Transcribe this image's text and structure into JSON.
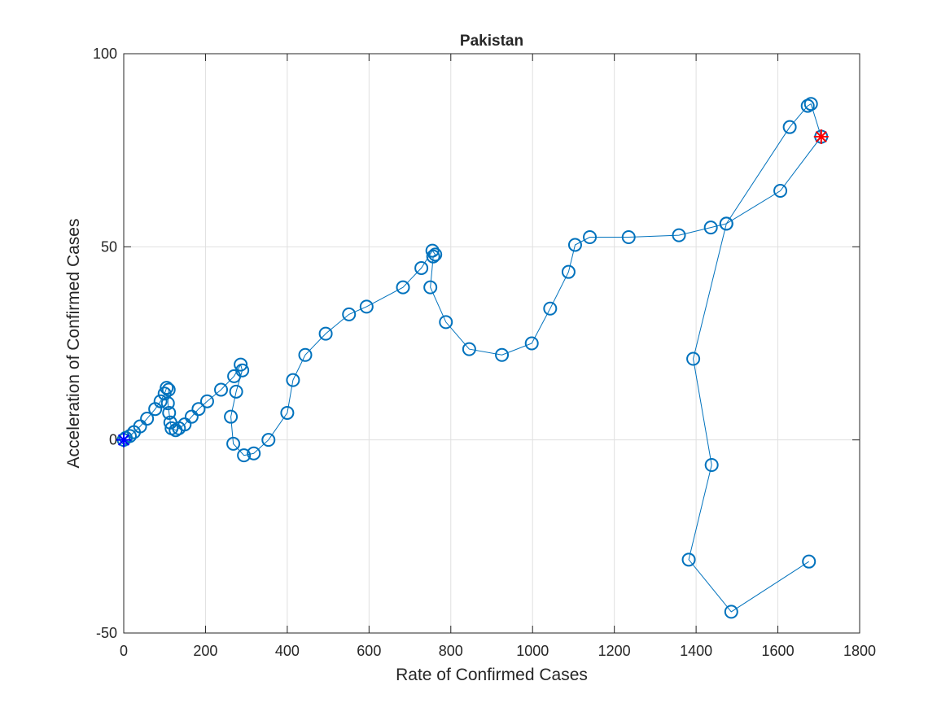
{
  "chart_data": {
    "type": "scatter",
    "title": "Pakistan",
    "xlabel": "Rate of Confirmed Cases",
    "ylabel": "Acceleration of Confirmed Cases",
    "xlim": [
      0,
      1800
    ],
    "ylim": [
      -50,
      100
    ],
    "xticks": [
      0,
      200,
      400,
      600,
      800,
      1000,
      1200,
      1400,
      1600,
      1800
    ],
    "yticks": [
      -50,
      0,
      50,
      100
    ],
    "xtick_labels": [
      "0",
      "200",
      "400",
      "600",
      "800",
      "1000",
      "1200",
      "1400",
      "1600",
      "1800"
    ],
    "ytick_labels": [
      "-50",
      "0",
      "50",
      "100"
    ],
    "grid": true,
    "series": [
      {
        "color": "#0072BD",
        "marker": "circle",
        "line": true,
        "points": [
          [
            0,
            0
          ],
          [
            5,
            0.5
          ],
          [
            15,
            1
          ],
          [
            25,
            2
          ],
          [
            40,
            3.5
          ],
          [
            57,
            5.5
          ],
          [
            77,
            8
          ],
          [
            90,
            10
          ],
          [
            100,
            12
          ],
          [
            105,
            13.5
          ],
          [
            110,
            13
          ],
          [
            108,
            9.5
          ],
          [
            111,
            7
          ],
          [
            114,
            4.5
          ],
          [
            117,
            3
          ],
          [
            127,
            2.5
          ],
          [
            135,
            3
          ],
          [
            149,
            4
          ],
          [
            166,
            6
          ],
          [
            183,
            8
          ],
          [
            204,
            10
          ],
          [
            238,
            13
          ],
          [
            270,
            16.5
          ],
          [
            286,
            19.5
          ],
          [
            290,
            18
          ],
          [
            275,
            12.5
          ],
          [
            262,
            6
          ],
          [
            268,
            -1
          ],
          [
            294,
            -4
          ],
          [
            318,
            -3.5
          ],
          [
            354,
            0
          ],
          [
            400,
            7
          ],
          [
            414,
            15.5
          ],
          [
            444,
            22
          ],
          [
            494,
            27.5
          ],
          [
            551,
            32.5
          ],
          [
            594,
            34.5
          ],
          [
            683,
            39.5
          ],
          [
            728,
            44.5
          ],
          [
            755,
            49
          ],
          [
            762,
            48
          ],
          [
            757,
            47.5
          ],
          [
            750,
            39.5
          ],
          [
            788,
            30.5
          ],
          [
            845,
            23.5
          ],
          [
            925,
            22
          ],
          [
            998,
            25
          ],
          [
            1043,
            34
          ],
          [
            1088,
            43.5
          ],
          [
            1104,
            50.5
          ],
          [
            1140,
            52.5
          ],
          [
            1235,
            52.5
          ],
          [
            1358,
            53
          ],
          [
            1436,
            55
          ],
          [
            1474,
            56
          ],
          [
            1606,
            64.5
          ],
          [
            1706,
            78.5
          ],
          [
            1681,
            87
          ],
          [
            1673,
            86.5
          ],
          [
            1629,
            81
          ],
          [
            1474,
            56
          ],
          [
            1393,
            21
          ],
          [
            1438,
            -6.5
          ],
          [
            1382,
            -31
          ],
          [
            1486,
            -44.5
          ],
          [
            1676,
            -31.5
          ]
        ]
      }
    ],
    "start_marker": {
      "x": 0,
      "y": 0,
      "color": "#0000FF",
      "marker": "asterisk"
    },
    "end_marker": {
      "x": 1706,
      "y": 78.5,
      "color": "#FF0000",
      "marker": "asterisk"
    }
  }
}
